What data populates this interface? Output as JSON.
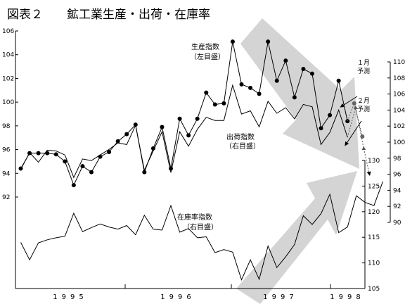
{
  "chart_data": {
    "type": "line",
    "title": "図表２　　鉱工業生産・出荷・在庫率",
    "years": [
      "1995",
      "1996",
      "1997",
      "1998"
    ],
    "left_axis": {
      "ticks": [
        92,
        94,
        96,
        98,
        100,
        102,
        104,
        106
      ],
      "range": [
        92,
        106
      ]
    },
    "right_axis_shipments": {
      "ticks": [
        90,
        92,
        94,
        96,
        98,
        100,
        102,
        104,
        106,
        108,
        110
      ],
      "range": [
        90,
        110
      ]
    },
    "right_axis_inventory": {
      "ticks": [
        105,
        110,
        115,
        120,
        125,
        130
      ],
      "range": [
        105,
        130
      ]
    },
    "series": [
      {
        "name": "生産指数",
        "axis_note": "（左目盛）",
        "axis": "left",
        "style": "line-dots",
        "values": [
          94.4,
          95.7,
          95.7,
          95.7,
          95.6,
          95.0,
          93.0,
          94.6,
          94.1,
          95.4,
          95.8,
          96.7,
          97.3,
          98.1,
          94.1,
          96.1,
          97.9,
          94.4,
          98.6,
          97.2,
          98.6,
          100.8,
          99.8,
          99.9,
          105.1,
          101.5,
          101.2,
          100.7,
          105.1,
          101.8,
          103.5,
          100.4,
          102.8,
          102.4,
          97.8,
          98.9,
          101.8,
          98.4
        ]
      },
      {
        "name": "出荷指数",
        "axis_note": "（右目盛）",
        "axis": "right",
        "style": "line",
        "values": [
          96.6,
          98.7,
          97.5,
          99.0,
          98.9,
          98.4,
          95.6,
          97.9,
          97.7,
          98.4,
          99.1,
          99.9,
          99.7,
          102.1,
          96.5,
          98.9,
          101.3,
          96.2,
          101.3,
          99.5,
          101.6,
          103.1,
          102.7,
          102.7,
          107.1,
          103.5,
          103.9,
          101.9,
          105.1,
          103.6,
          104.3,
          102.9,
          104.7,
          104.4,
          99.7,
          101.2,
          104.0,
          100.6
        ]
      },
      {
        "name": "在庫率指数",
        "axis_note": "（右目盛）",
        "axis": "right-lower",
        "style": "line",
        "values": [
          114.0,
          110.6,
          113.9,
          114.5,
          114.9,
          115.2,
          119.7,
          116.1,
          116.9,
          117.6,
          117.0,
          116.6,
          117.3,
          115.5,
          119.3,
          116.6,
          116.4,
          121.2,
          116.0,
          116.7,
          114.9,
          115.1,
          112.0,
          112.6,
          112.1,
          106.7,
          110.6,
          106.8,
          113.3,
          109.1,
          111.2,
          113.6,
          119.2,
          117.5,
          119.6,
          123.4,
          115.9,
          117.0,
          123.1,
          121.8,
          121.2,
          125.9
        ]
      }
    ],
    "forecasts": [
      {
        "label": "１月\n予測",
        "production": 99.9,
        "shipments": 104.3
      },
      {
        "label": "２月\n予測",
        "production": 97.1,
        "shipments": 99.2
      }
    ]
  }
}
